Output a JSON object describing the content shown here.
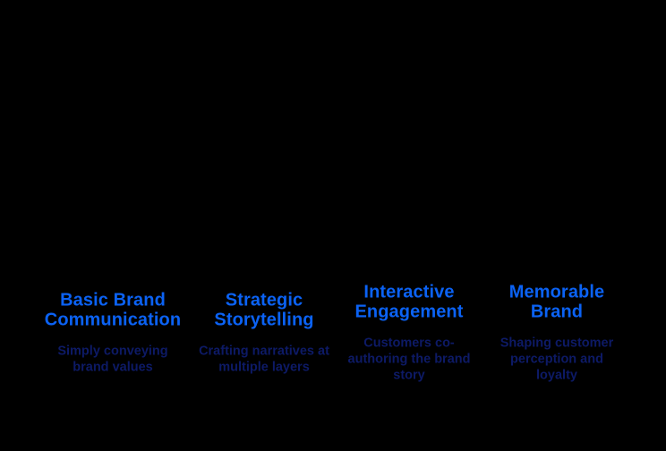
{
  "diagram": {
    "background_color": "#000000",
    "colors": {
      "title": "#0B62F4",
      "description": "#0D1A66"
    },
    "columns": [
      {
        "title": "Basic Brand\nCommunication",
        "description": "Simply conveying\nbrand values"
      },
      {
        "title": "Strategic\nStorytelling",
        "description": "Crafting narratives at\nmultiple layers"
      },
      {
        "title": "Interactive\nEngagement",
        "description": "Customers co-\nauthoring the brand\nstory"
      },
      {
        "title": "Memorable\nBrand",
        "description": "Shaping customer\nperception and\nloyalty"
      }
    ]
  }
}
